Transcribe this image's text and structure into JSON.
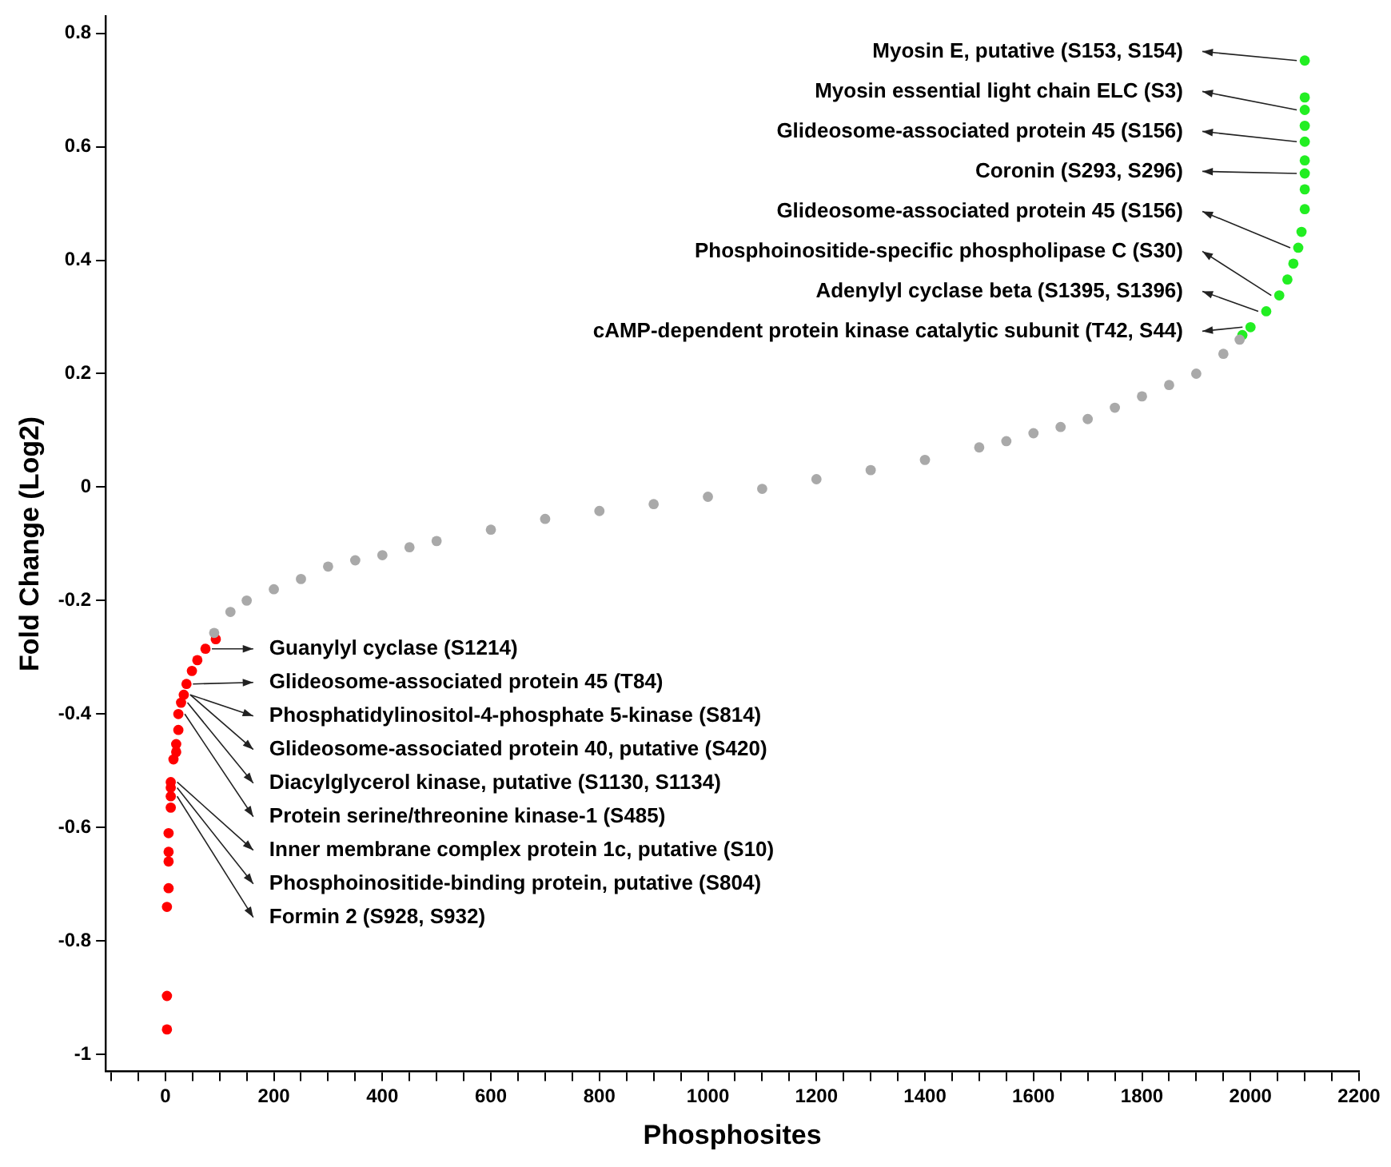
{
  "chart_data": {
    "type": "scatter",
    "xlabel": "Phosphosites",
    "ylabel": "Fold Change (Log2)",
    "xlim": [
      -110,
      2200
    ],
    "ylim": [
      -1.03,
      0.83
    ],
    "xticks": [
      {
        "value": -100,
        "label": null
      },
      {
        "value": -50,
        "label": null
      },
      0,
      {
        "value": 50,
        "label": null
      },
      {
        "value": 100,
        "label": null
      },
      {
        "value": 150,
        "label": null
      },
      200,
      {
        "value": 250,
        "label": null
      },
      {
        "value": 300,
        "label": null
      },
      {
        "value": 350,
        "label": null
      },
      400,
      {
        "value": 450,
        "label": null
      },
      {
        "value": 500,
        "label": null
      },
      {
        "value": 550,
        "label": null
      },
      600,
      {
        "value": 650,
        "label": null
      },
      {
        "value": 700,
        "label": null
      },
      {
        "value": 750,
        "label": null
      },
      800,
      {
        "value": 850,
        "label": null
      },
      {
        "value": 900,
        "label": null
      },
      {
        "value": 950,
        "label": null
      },
      1000,
      {
        "value": 1050,
        "label": null
      },
      {
        "value": 1100,
        "label": null
      },
      {
        "value": 1150,
        "label": null
      },
      1200,
      {
        "value": 1250,
        "label": null
      },
      {
        "value": 1300,
        "label": null
      },
      {
        "value": 1350,
        "label": null
      },
      1400,
      {
        "value": 1450,
        "label": null
      },
      {
        "value": 1500,
        "label": null
      },
      {
        "value": 1550,
        "label": null
      },
      1600,
      {
        "value": 1650,
        "label": null
      },
      {
        "value": 1700,
        "label": null
      },
      {
        "value": 1750,
        "label": null
      },
      1800,
      {
        "value": 1850,
        "label": null
      },
      {
        "value": 1900,
        "label": null
      },
      {
        "value": 1950,
        "label": null
      },
      2000,
      {
        "value": 2050,
        "label": null
      },
      {
        "value": 2100,
        "label": null
      },
      {
        "value": 2150,
        "label": null
      },
      2200
    ],
    "yticks": [
      -1,
      -0.8,
      -0.6,
      -0.4,
      -0.2,
      0,
      0.2,
      0.4,
      0.6,
      0.8
    ],
    "grid": false,
    "legend": false,
    "marker": "circle",
    "series": [
      {
        "color": "#a9a9a9",
        "x": [
          90,
          120,
          150,
          200,
          250,
          300,
          350,
          400,
          450,
          500,
          600,
          700,
          800,
          900,
          1000,
          1100,
          1200,
          1300,
          1400,
          1500,
          1550,
          1600,
          1650,
          1700,
          1750,
          1800,
          1850,
          1900,
          1950,
          1980
        ],
        "values": [
          -0.257,
          -0.22,
          -0.2,
          -0.18,
          -0.162,
          -0.14,
          -0.129,
          -0.12,
          -0.106,
          -0.095,
          -0.075,
          -0.056,
          -0.042,
          -0.03,
          -0.017,
          -0.003,
          0.014,
          0.03,
          0.048,
          0.07,
          0.081,
          0.095,
          0.106,
          0.12,
          0.14,
          0.16,
          0.18,
          0.2,
          0.235,
          0.26
        ]
      },
      {
        "color": "#ff0000",
        "x": [
          3,
          3,
          3,
          6,
          6,
          6,
          6,
          10,
          10,
          10,
          10,
          15,
          20,
          20,
          24,
          24,
          29,
          34,
          39,
          49,
          59,
          74,
          93
        ],
        "values": [
          -0.956,
          -0.897,
          -0.74,
          -0.707,
          -0.66,
          -0.643,
          -0.61,
          -0.565,
          -0.545,
          -0.53,
          -0.52,
          -0.48,
          -0.467,
          -0.453,
          -0.428,
          -0.4,
          -0.38,
          -0.366,
          -0.347,
          -0.324,
          -0.305,
          -0.285,
          -0.268
        ]
      },
      {
        "color": "#22ee22",
        "x": [
          1985,
          2000,
          2029,
          2053,
          2068,
          2079,
          2088,
          2094,
          2100,
          2100,
          2100,
          2100,
          2100,
          2100,
          2100,
          2100,
          2100
        ],
        "values": [
          0.268,
          0.282,
          0.31,
          0.338,
          0.366,
          0.394,
          0.422,
          0.45,
          0.49,
          0.525,
          0.553,
          0.576,
          0.609,
          0.637,
          0.665,
          0.687,
          0.752
        ]
      }
    ],
    "annotations": [
      {
        "text": "Myosin E, putative (S153, S154)",
        "x": 2100,
        "y": 0.752
      },
      {
        "text": "Myosin essential light chain ELC (S3)",
        "x": 2100,
        "y": 0.665
      },
      {
        "text": "Glideosome-associated protein 45 (S156)",
        "x": 2100,
        "y": 0.609
      },
      {
        "text": "Coronin (S293, S296)",
        "x": 2100,
        "y": 0.553
      },
      {
        "text": "Glideosome-associated protein 45 (S156)",
        "x": 2088,
        "y": 0.422
      },
      {
        "text": "Phosphoinositide-specific phospholipase C (S30)",
        "x": 2053,
        "y": 0.338
      },
      {
        "text": "Adenylyl cyclase beta (S1395, S1396)",
        "x": 2029,
        "y": 0.31
      },
      {
        "text": "cAMP-dependent protein kinase catalytic subunit (T42, S44)",
        "x": 2000,
        "y": 0.282
      },
      {
        "text": "Guanylyl cyclase (S1214)",
        "x": 74,
        "y": -0.285
      },
      {
        "text": "Glideosome-associated protein 45 (T84)",
        "x": 39,
        "y": -0.347
      },
      {
        "text": "Phosphatidylinositol-4-phosphate 5-kinase (S814)",
        "x": 34,
        "y": -0.366
      },
      {
        "text": "Glideosome-associated protein 40, putative (S420)",
        "x": 34,
        "y": -0.366
      },
      {
        "text": "Diacylglycerol kinase, putative (S1130, S1134)",
        "x": 29,
        "y": -0.38
      },
      {
        "text": "Protein serine/threonine kinase-1 (S485)",
        "x": 24,
        "y": -0.4
      },
      {
        "text": "Inner membrane complex protein 1c, putative (S10)",
        "x": 10,
        "y": -0.52
      },
      {
        "text": "Phosphoinositide-binding protein, putative (S804)",
        "x": 10,
        "y": -0.53
      },
      {
        "text": "Formin 2 (S928, S932)",
        "x": 10,
        "y": -0.545
      }
    ]
  }
}
